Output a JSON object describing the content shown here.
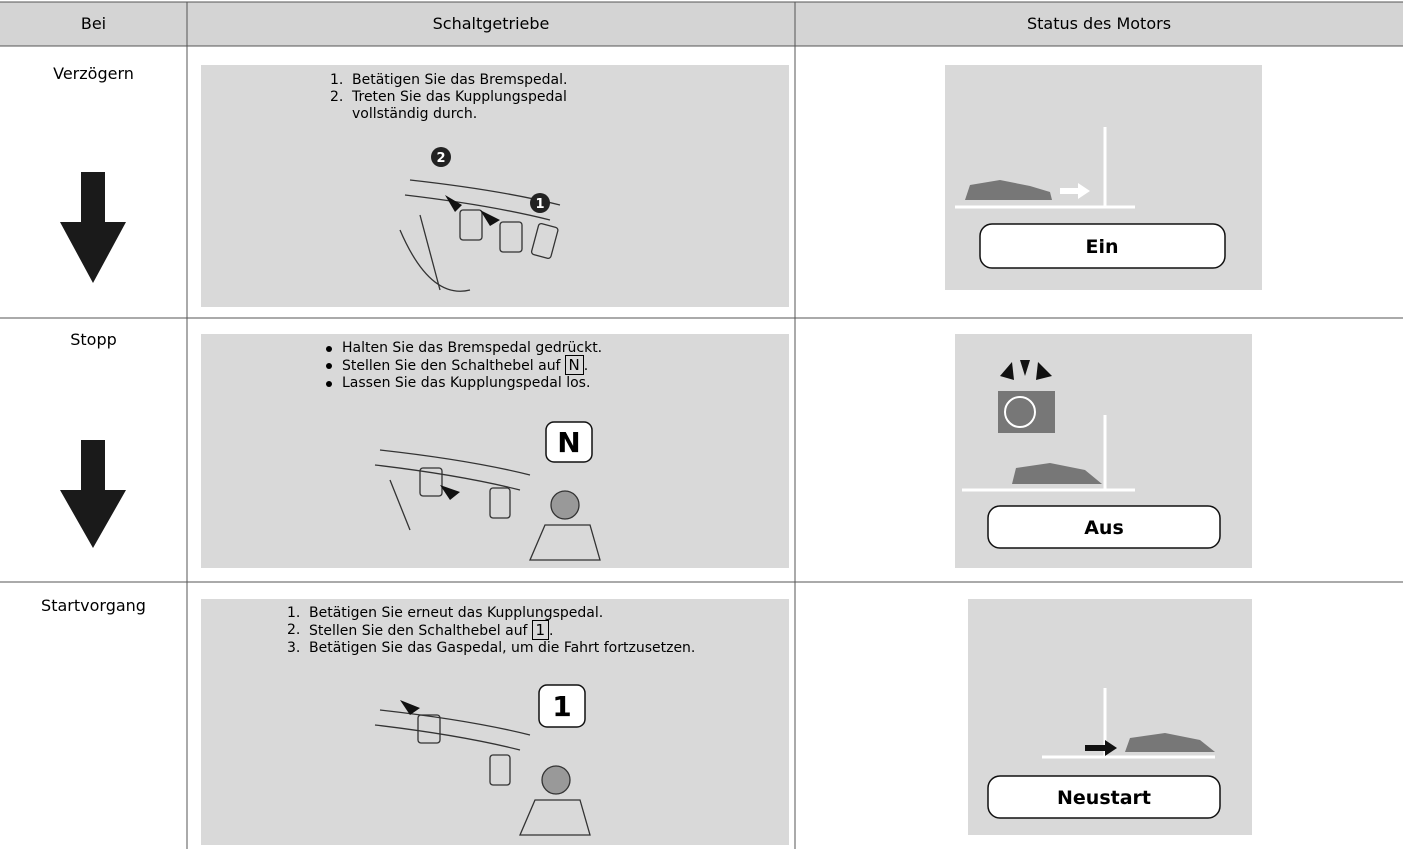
{
  "table": {
    "header": [
      "Bei",
      "Schaltgetriebe",
      "Status des Motors"
    ],
    "rows": [
      {
        "label": "Verzögern",
        "steps": [
          {
            "marker": "1.",
            "text": "Betätigen Sie das Bremspedal."
          },
          {
            "marker": "2.",
            "text": "Treten Sie das Kupplungspedal vollständig durch."
          }
        ],
        "callouts": [
          "2",
          "1"
        ],
        "status": "Ein"
      },
      {
        "label": "Stopp",
        "steps": [
          {
            "text": "Halten Sie das Bremspedal gedrückt."
          },
          {
            "text": "Stellen Sie den Schalthebel auf",
            "key": "N",
            "after": "."
          },
          {
            "text": "Lassen Sie das Kupplungspedal los."
          }
        ],
        "callouts": [
          "N"
        ],
        "status": "Aus"
      },
      {
        "label": "Startvorgang",
        "steps": [
          {
            "marker": "1.",
            "text": "Betätigen Sie erneut das Kupplungspedal."
          },
          {
            "marker": "2.",
            "text": "Stellen Sie den Schalthebel auf",
            "key": "1",
            "after": "."
          },
          {
            "marker": "3.",
            "text": "Betätigen Sie das Gaspedal, um die Fahrt fortzusetzen."
          }
        ],
        "callouts": [
          "1"
        ],
        "status": "Neustart"
      }
    ]
  }
}
